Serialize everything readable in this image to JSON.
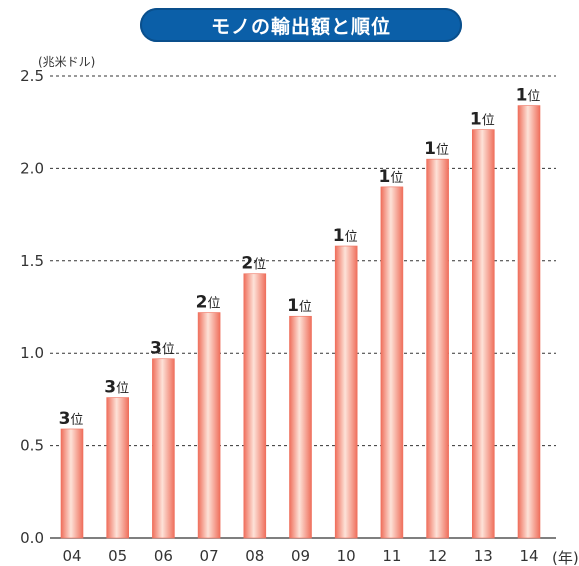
{
  "chart_data": {
    "type": "bar",
    "title": "モノの輸出額と順位",
    "ylabel": "(兆米ドル)",
    "xlabel": "(年)",
    "ylim": [
      0,
      2.5
    ],
    "yticks": [
      "0.0",
      "0.5",
      "1.0",
      "1.5",
      "2.0",
      "2.5"
    ],
    "categories": [
      "04",
      "05",
      "06",
      "07",
      "08",
      "09",
      "10",
      "11",
      "12",
      "13",
      "14"
    ],
    "values": [
      0.59,
      0.76,
      0.97,
      1.22,
      1.43,
      1.2,
      1.58,
      1.9,
      2.05,
      2.21,
      2.34
    ],
    "ranks": [
      "3",
      "3",
      "3",
      "2",
      "2",
      "1",
      "1",
      "1",
      "1",
      "1",
      "1"
    ],
    "rank_suffix": "位",
    "grid": true,
    "colors": {
      "bar_light": "#fde2d8",
      "bar_dark": "#ef6f5c",
      "grid": "#333333",
      "title_bg": "#0b5fa8"
    }
  }
}
